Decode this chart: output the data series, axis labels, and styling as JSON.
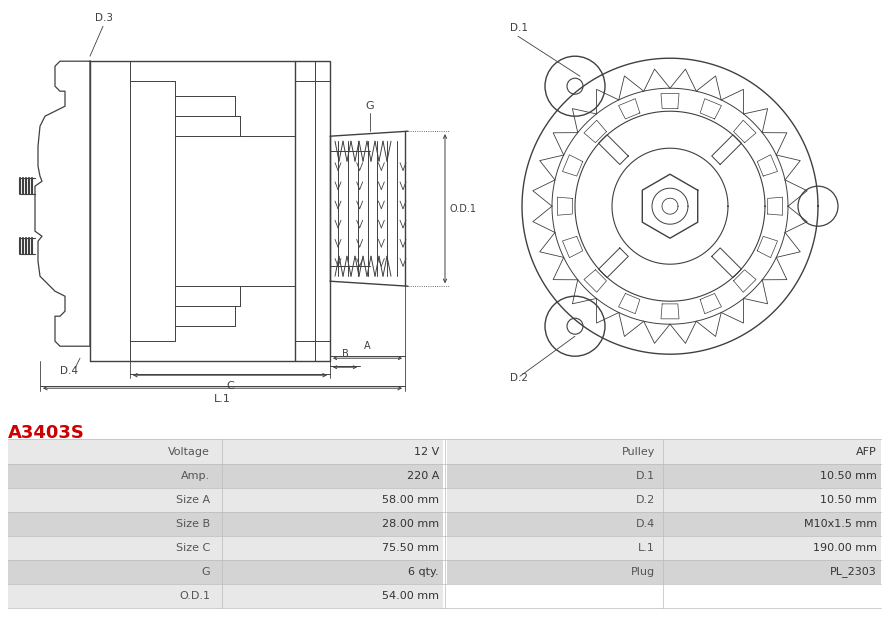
{
  "title": "A3403S",
  "title_color": "#cc0000",
  "bg_color": "#ffffff",
  "table_headers_left": [
    "Voltage",
    "Amp.",
    "Size A",
    "Size B",
    "Size C",
    "G",
    "O.D.1"
  ],
  "table_values_left": [
    "12 V",
    "220 A",
    "58.00 mm",
    "28.00 mm",
    "75.50 mm",
    "6 qty.",
    "54.00 mm"
  ],
  "table_headers_right": [
    "Pulley",
    "D.1",
    "D.2",
    "D.4",
    "L.1",
    "Plug",
    ""
  ],
  "table_values_right": [
    "AFP",
    "10.50 mm",
    "10.50 mm",
    "M10x1.5 mm",
    "190.00 mm",
    "PL_2303",
    ""
  ],
  "row_colors": [
    "#e8e8e8",
    "#d4d4d4",
    "#e8e8e8",
    "#d4d4d4",
    "#e8e8e8",
    "#d4d4d4",
    "#e8e8e8"
  ],
  "label_color": "#555555",
  "value_color": "#333333",
  "diagram_color": "#404040"
}
